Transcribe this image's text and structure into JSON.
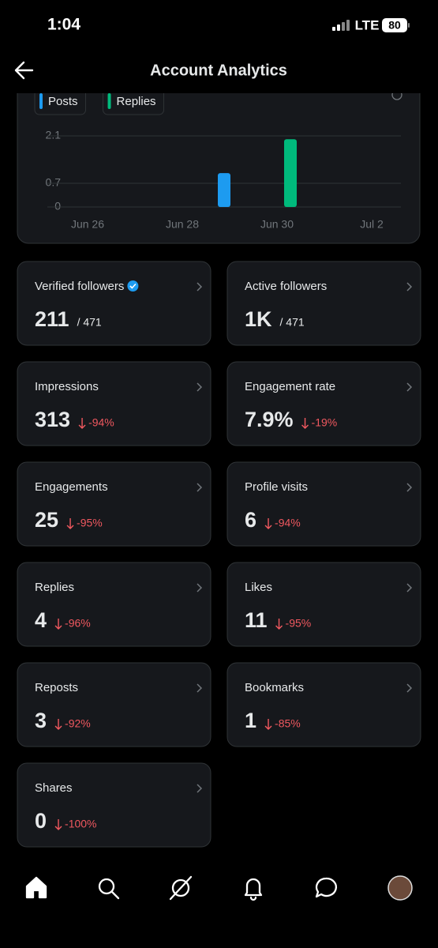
{
  "status_bar": {
    "time": "1:04",
    "network": "LTE",
    "battery": "80"
  },
  "header": {
    "title": "Account Analytics"
  },
  "chart_data": {
    "type": "bar",
    "categories": [
      "Jun 26",
      null,
      "Jun 28",
      null,
      "Jun 30",
      null,
      "Jul 2"
    ],
    "series": [
      {
        "name": "Posts",
        "color": "#1d9bf0",
        "values": [
          0,
          0,
          0,
          1,
          0,
          0,
          0
        ]
      },
      {
        "name": "Replies",
        "color": "#00ba7c",
        "values": [
          0,
          0,
          0,
          0,
          2,
          0,
          0
        ]
      }
    ],
    "ylim": [
      0,
      2.1
    ],
    "yticks": [
      0,
      0.7,
      2.1
    ],
    "grid": true
  },
  "cards": [
    {
      "label": "Verified followers",
      "value": "211",
      "total": "/ 471",
      "verified": true
    },
    {
      "label": "Active followers",
      "value": "1K",
      "total": "/ 471"
    },
    {
      "label": "Impressions",
      "value": "313",
      "change": "-94%"
    },
    {
      "label": "Engagement rate",
      "value": "7.9%",
      "change": "-19%"
    },
    {
      "label": "Engagements",
      "value": "25",
      "change": "-95%"
    },
    {
      "label": "Profile visits",
      "value": "6",
      "change": "-94%"
    },
    {
      "label": "Replies",
      "value": "4",
      "change": "-96%"
    },
    {
      "label": "Likes",
      "value": "11",
      "change": "-95%"
    },
    {
      "label": "Reposts",
      "value": "3",
      "change": "-92%"
    },
    {
      "label": "Bookmarks",
      "value": "1",
      "change": "-85%"
    },
    {
      "label": "Shares",
      "value": "0",
      "change": "-100%"
    }
  ]
}
